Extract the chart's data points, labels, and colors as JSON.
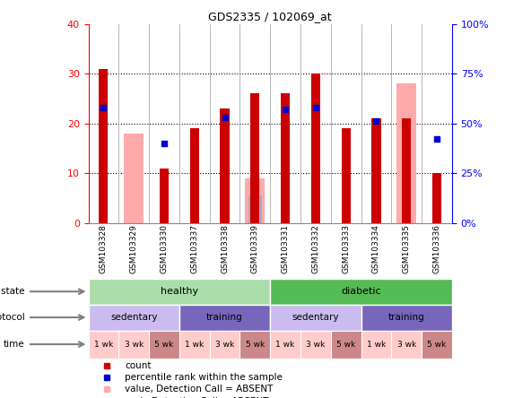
{
  "title": "GDS2335 / 102069_at",
  "samples": [
    "GSM103328",
    "GSM103329",
    "GSM103330",
    "GSM103337",
    "GSM103338",
    "GSM103339",
    "GSM103331",
    "GSM103332",
    "GSM103333",
    "GSM103334",
    "GSM103335",
    "GSM103336"
  ],
  "count_values": [
    31,
    0,
    11,
    19,
    23,
    26,
    26,
    30,
    19,
    21,
    21,
    10
  ],
  "percentile_values": [
    58,
    0,
    40,
    0,
    53,
    0,
    57,
    58,
    0,
    51,
    0,
    42
  ],
  "absent_value_bars": [
    0,
    18,
    0,
    0,
    0,
    9,
    0,
    0,
    0,
    0,
    28,
    0
  ],
  "absent_rank_bars": [
    0,
    0,
    0,
    0,
    0,
    14,
    0,
    0,
    0,
    0,
    0,
    0
  ],
  "count_color": "#cc0000",
  "percentile_color": "#0000cc",
  "absent_value_color": "#ffaaaa",
  "absent_rank_color": "#aaaacc",
  "ylim_left": [
    0,
    40
  ],
  "ylim_right": [
    0,
    100
  ],
  "yticks_left": [
    0,
    10,
    20,
    30,
    40
  ],
  "yticks_right": [
    0,
    25,
    50,
    75,
    100
  ],
  "yticklabels_right": [
    "0%",
    "25%",
    "50%",
    "75%",
    "100%"
  ],
  "disease_state_healthy": {
    "start": 0,
    "end": 6,
    "color": "#aaddaa",
    "label": "healthy"
  },
  "disease_state_diabetic": {
    "start": 6,
    "end": 12,
    "color": "#55bb55",
    "label": "diabetic"
  },
  "protocol": [
    {
      "label": "sedentary",
      "start": 0,
      "end": 3,
      "color": "#ccbbee"
    },
    {
      "label": "training",
      "start": 3,
      "end": 6,
      "color": "#7766bb"
    },
    {
      "label": "sedentary",
      "start": 6,
      "end": 9,
      "color": "#ccbbee"
    },
    {
      "label": "training",
      "start": 9,
      "end": 12,
      "color": "#7766bb"
    }
  ],
  "time": [
    {
      "label": "1 wk",
      "idx": 0,
      "color": "#ffcccc"
    },
    {
      "label": "3 wk",
      "idx": 1,
      "color": "#ffcccc"
    },
    {
      "label": "5 wk",
      "idx": 2,
      "color": "#cc8888"
    },
    {
      "label": "1 wk",
      "idx": 3,
      "color": "#ffcccc"
    },
    {
      "label": "3 wk",
      "idx": 4,
      "color": "#ffcccc"
    },
    {
      "label": "5 wk",
      "idx": 5,
      "color": "#cc8888"
    },
    {
      "label": "1 wk",
      "idx": 6,
      "color": "#ffcccc"
    },
    {
      "label": "3 wk",
      "idx": 7,
      "color": "#ffcccc"
    },
    {
      "label": "5 wk",
      "idx": 8,
      "color": "#cc8888"
    },
    {
      "label": "1 wk",
      "idx": 9,
      "color": "#ffcccc"
    },
    {
      "label": "3 wk",
      "idx": 10,
      "color": "#ffcccc"
    },
    {
      "label": "5 wk",
      "idx": 11,
      "color": "#cc8888"
    }
  ],
  "legend": [
    {
      "label": "count",
      "color": "#cc0000"
    },
    {
      "label": "percentile rank within the sample",
      "color": "#0000cc"
    },
    {
      "label": "value, Detection Call = ABSENT",
      "color": "#ffaaaa"
    },
    {
      "label": "rank, Detection Call = ABSENT",
      "color": "#aaaacc"
    }
  ],
  "bg_color": "#ffffff",
  "sample_bg_color": "#cccccc",
  "bar_width": 0.3
}
